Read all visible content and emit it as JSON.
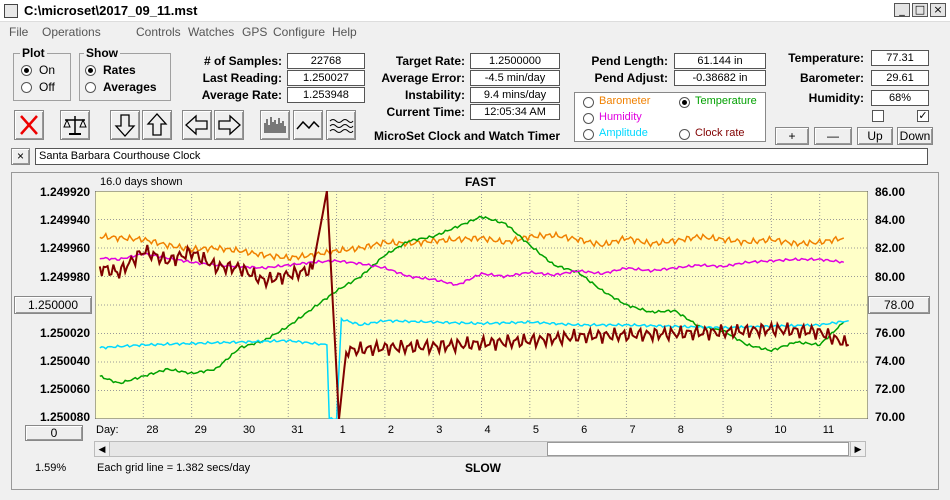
{
  "window": {
    "title": "C:\\microset\\2017_09_11.mst"
  },
  "menu": [
    "File",
    "Operations",
    "Controls",
    "Watches",
    "GPS",
    "Configure",
    "Help"
  ],
  "plot_group": {
    "title": "Plot",
    "options": [
      "On",
      "Off"
    ],
    "selected": "On"
  },
  "show_group": {
    "title": "Show",
    "options": [
      "Rates",
      "Averages"
    ],
    "selected": "Rates"
  },
  "stats": {
    "samples_label": "# of Samples:",
    "samples": "22768",
    "last_label": "Last Reading:",
    "last": "1.250027",
    "avg_rate_label": "Average Rate:",
    "avg_rate": "1.253948",
    "target_label": "Target Rate:",
    "target": "1.2500000",
    "avg_err_label": "Average Error:",
    "avg_err": "-4.5 min/day",
    "instab_label": "Instability:",
    "instab": "9.4 mins/day",
    "time_label": "Current Time:",
    "time": "12:05:34 AM",
    "pend_len_label": "Pend Length:",
    "pend_len": "61.144 in",
    "pend_adj_label": "Pend Adjust:",
    "pend_adj": "-0.38682 in",
    "temp_label": "Temperature:",
    "temp": "77.31",
    "baro_label": "Barometer:",
    "baro": "29.61",
    "hum_label": "Humidity:",
    "hum": "68%"
  },
  "app_caption": "MicroSet Clock and Watch Timer",
  "series_options": [
    {
      "label": "Barometer",
      "color": "#f08000",
      "selected": false
    },
    {
      "label": "Temperature",
      "color": "#00a000",
      "selected": true
    },
    {
      "label": "Humidity",
      "color": "#e000e0",
      "selected": false
    },
    {
      "label": "Amplitude",
      "color": "#00d8ff",
      "selected": false
    },
    {
      "label": "Clock rate",
      "color": "#800000",
      "selected": false
    }
  ],
  "small_buttons": {
    "plus": "+",
    "minus": "—",
    "up": "Up",
    "down": "Down"
  },
  "checkbox_right_checked": "✓",
  "clock_name": "Santa Barbara Courthouse Clock",
  "chart": {
    "days_shown": "16.0 days shown",
    "top": "FAST",
    "bottom": "SLOW",
    "grid_note": "Each grid line = 1.382 secs/day",
    "zoom": "1.59%",
    "left_btn": "1.250000",
    "right_btn": "78.00",
    "zero_btn": "0",
    "day_label": "Day:"
  },
  "chart_data": {
    "type": "line",
    "y_left_ticks": [
      "1.249920",
      "1.249940",
      "1.249960",
      "1.249980",
      "1.250000",
      "1.250020",
      "1.250040",
      "1.250060",
      "1.250080"
    ],
    "y_right_ticks": [
      "86.00",
      "84.00",
      "82.00",
      "80.00",
      "78.00",
      "76.00",
      "74.00",
      "72.00",
      "70.00"
    ],
    "x_ticks": [
      "28",
      "29",
      "30",
      "31",
      "1",
      "2",
      "3",
      "4",
      "5",
      "6",
      "7",
      "8",
      "9",
      "10",
      "11"
    ],
    "x_tick_day_index": [
      1,
      2,
      3,
      4,
      5,
      6,
      7,
      8,
      9,
      10,
      11,
      12,
      13,
      14,
      15
    ],
    "xlim": [
      0,
      16
    ],
    "right_axis_range": [
      70,
      86
    ],
    "series": [
      {
        "color": "#f08000",
        "values": [
          [
            0.1,
            82.8
          ],
          [
            1,
            82.6
          ],
          [
            1.5,
            82.2
          ],
          [
            2,
            81.9
          ],
          [
            2.5,
            82.0
          ],
          [
            3,
            81.8
          ],
          [
            3.5,
            81.5
          ],
          [
            4,
            81.3
          ],
          [
            4.5,
            81.5
          ],
          [
            5,
            81.8
          ],
          [
            5.5,
            82.0
          ],
          [
            6,
            82.4
          ],
          [
            6.5,
            82.3
          ],
          [
            7,
            82.5
          ],
          [
            7.5,
            82.6
          ],
          [
            8,
            82.7
          ],
          [
            8.5,
            82.4
          ],
          [
            9,
            82.8
          ],
          [
            9.5,
            82.9
          ],
          [
            10,
            82.6
          ],
          [
            10.5,
            82.2
          ],
          [
            11,
            82.7
          ],
          [
            11.5,
            82.3
          ],
          [
            12,
            82.5
          ],
          [
            12.5,
            82.8
          ],
          [
            13,
            82.6
          ],
          [
            13.5,
            82.4
          ],
          [
            14,
            82.6
          ],
          [
            14.5,
            82.3
          ],
          [
            15,
            82.4
          ],
          [
            15.5,
            82.7
          ]
        ]
      },
      {
        "color": "#00a000",
        "values": [
          [
            0.1,
            73.0
          ],
          [
            0.5,
            72.5
          ],
          [
            1,
            73.0
          ],
          [
            1.5,
            73.5
          ],
          [
            2,
            73.2
          ],
          [
            2.5,
            73.5
          ],
          [
            3,
            75.0
          ],
          [
            3.5,
            75.5
          ],
          [
            4,
            76.5
          ],
          [
            4.6,
            78.0
          ],
          [
            5,
            79.0
          ],
          [
            5.5,
            80.0
          ],
          [
            6,
            81.5
          ],
          [
            6.5,
            82.5
          ],
          [
            7,
            82.8
          ],
          [
            7.5,
            83.5
          ],
          [
            8,
            84.2
          ],
          [
            8.5,
            83.7
          ],
          [
            9,
            82.2
          ],
          [
            9.5,
            80.8
          ],
          [
            10,
            80.3
          ],
          [
            10.5,
            79.0
          ],
          [
            11,
            78.0
          ],
          [
            11.5,
            77.5
          ],
          [
            12,
            77.6
          ],
          [
            12.5,
            76.5
          ],
          [
            13,
            76.2
          ],
          [
            13.5,
            75.2
          ],
          [
            14,
            74.8
          ],
          [
            14.5,
            75.4
          ],
          [
            15,
            75.2
          ],
          [
            15.5,
            76.8
          ]
        ]
      },
      {
        "color": "#e000e0",
        "values": [
          [
            0.1,
            81.3
          ],
          [
            0.5,
            81.2
          ],
          [
            1,
            81.6
          ],
          [
            1.5,
            81.3
          ],
          [
            2,
            81.0
          ],
          [
            2.5,
            80.8
          ],
          [
            3,
            80.7
          ],
          [
            3.5,
            80.6
          ],
          [
            4,
            80.8
          ],
          [
            4.5,
            81.0
          ],
          [
            5,
            81.1
          ],
          [
            5.5,
            80.9
          ],
          [
            6,
            80.6
          ],
          [
            6.5,
            80.0
          ],
          [
            7,
            79.8
          ],
          [
            7.5,
            79.4
          ],
          [
            8,
            80.2
          ],
          [
            8.5,
            80.0
          ],
          [
            9,
            80.3
          ],
          [
            9.5,
            80.1
          ],
          [
            10,
            80.4
          ],
          [
            10.5,
            80.2
          ],
          [
            11,
            80.6
          ],
          [
            11.5,
            80.4
          ],
          [
            12,
            80.6
          ],
          [
            12.5,
            80.8
          ],
          [
            13,
            80.7
          ],
          [
            13.5,
            81.0
          ],
          [
            14,
            81.1
          ],
          [
            14.5,
            81.2
          ],
          [
            15,
            81.2
          ],
          [
            15.5,
            81.0
          ]
        ]
      },
      {
        "color": "#00d8ff",
        "values": [
          [
            0.1,
            75.0
          ],
          [
            1,
            75.2
          ],
          [
            2,
            75.3
          ],
          [
            3,
            75.4
          ],
          [
            4,
            75.5
          ],
          [
            4.8,
            75.2
          ],
          [
            4.85,
            70.0
          ],
          [
            5.0,
            70.0
          ],
          [
            5.1,
            77.0
          ],
          [
            5.5,
            76.6
          ],
          [
            6,
            76.9
          ],
          [
            7,
            76.8
          ],
          [
            8,
            76.7
          ],
          [
            9,
            76.8
          ],
          [
            10,
            76.6
          ],
          [
            11,
            76.6
          ],
          [
            12,
            76.5
          ],
          [
            13,
            76.4
          ],
          [
            14,
            76.5
          ],
          [
            15,
            76.6
          ],
          [
            15.6,
            76.9
          ]
        ]
      },
      {
        "color": "#800000",
        "values": [
          [
            0.1,
            80.6
          ],
          [
            0.5,
            80.3
          ],
          [
            1,
            81.8
          ],
          [
            1.5,
            81.1
          ],
          [
            2,
            81.7
          ],
          [
            2.5,
            80.7
          ],
          [
            3,
            80.6
          ],
          [
            3.5,
            79.7
          ],
          [
            4,
            80.1
          ],
          [
            4.5,
            80.5
          ],
          [
            4.8,
            86.0
          ],
          [
            5.05,
            70.0
          ],
          [
            5.2,
            74.8
          ],
          [
            6,
            75.0
          ],
          [
            7,
            75.1
          ],
          [
            8,
            75.3
          ],
          [
            9,
            75.5
          ],
          [
            10,
            75.8
          ],
          [
            11,
            75.9
          ],
          [
            12,
            76.0
          ],
          [
            13,
            76.1
          ],
          [
            14,
            76.3
          ],
          [
            15,
            76.1
          ],
          [
            15.6,
            75.2
          ]
        ]
      }
    ]
  }
}
